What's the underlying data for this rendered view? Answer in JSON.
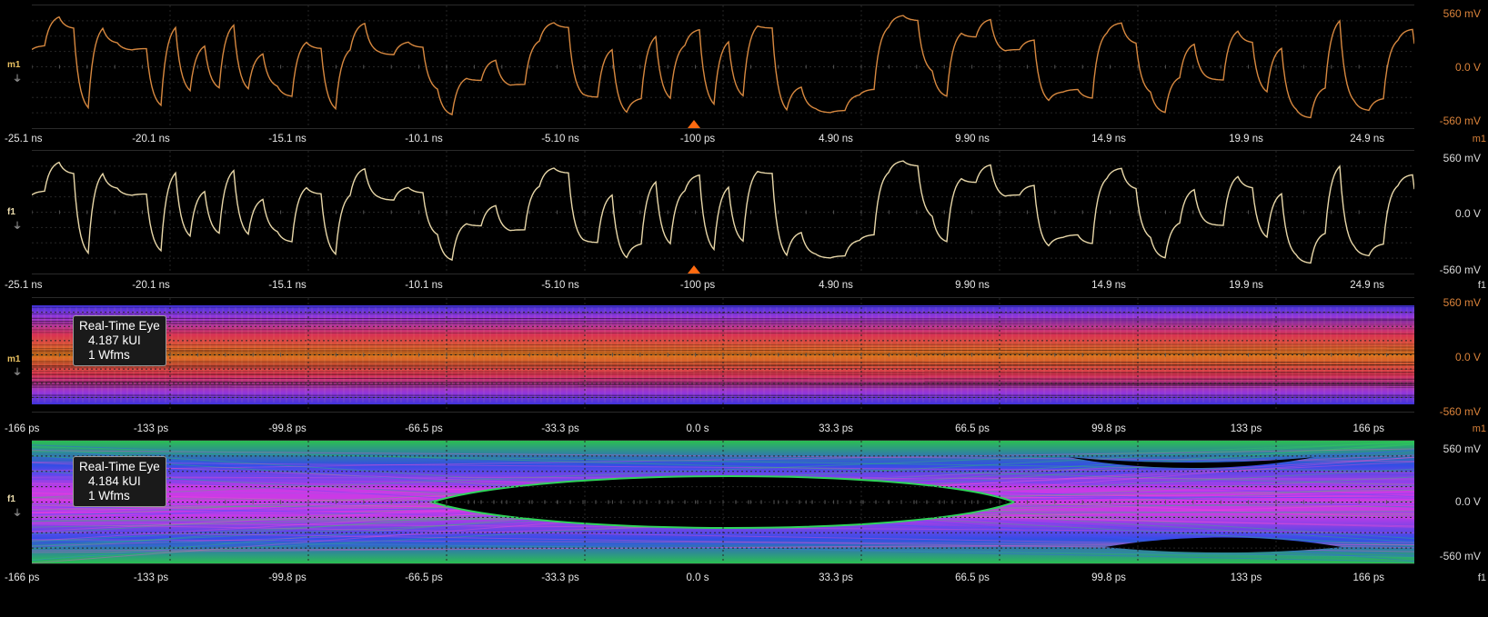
{
  "panels": [
    {
      "id": "m1-waveform",
      "channel": "m1",
      "trace_color": "#d7883f",
      "vtop": "560 mV",
      "vmid": "0.0 V",
      "vbot": "-560 mV",
      "xticks": [
        "-25.1 ns",
        "-20.1 ns",
        "-15.1 ns",
        "-10.1 ns",
        "-5.10 ns",
        "-100 ps",
        "4.90 ns",
        "9.90 ns",
        "14.9 ns",
        "19.9 ns",
        "24.9 ns"
      ]
    },
    {
      "id": "f1-waveform",
      "channel": "f1",
      "trace_color": "#e8d7a8",
      "vtop": "560 mV",
      "vmid": "0.0 V",
      "vbot": "-560 mV",
      "xticks": [
        "-25.1 ns",
        "-20.1 ns",
        "-15.1 ns",
        "-10.1 ns",
        "-5.10 ns",
        "-100 ps",
        "4.90 ns",
        "9.90 ns",
        "14.9 ns",
        "19.9 ns",
        "24.9 ns"
      ]
    },
    {
      "id": "m1-eye",
      "channel": "m1",
      "vtop": "560 mV",
      "vmid": "0.0 V",
      "vbot": "-560 mV",
      "xticks": [
        "-166 ps",
        "-133 ps",
        "-99.8 ps",
        "-66.5 ps",
        "-33.3 ps",
        "0.0 s",
        "33.3 ps",
        "66.5 ps",
        "99.8 ps",
        "133 ps",
        "166 ps"
      ],
      "eye": {
        "title": "Real-Time Eye",
        "ui": "4.187 kUI",
        "wfms": "1 Wfms"
      }
    },
    {
      "id": "f1-eye",
      "channel": "f1",
      "vtop": "560 mV",
      "vmid": "0.0 V",
      "vbot": "-560 mV",
      "xticks": [
        "-166 ps",
        "-133 ps",
        "-99.8 ps",
        "-66.5 ps",
        "-33.3 ps",
        "0.0 s",
        "33.3 ps",
        "66.5 ps",
        "99.8 ps",
        "133 ps",
        "166 ps"
      ],
      "eye": {
        "title": "Real-Time Eye",
        "ui": "4.184 kUI",
        "wfms": "1 Wfms"
      }
    }
  ]
}
